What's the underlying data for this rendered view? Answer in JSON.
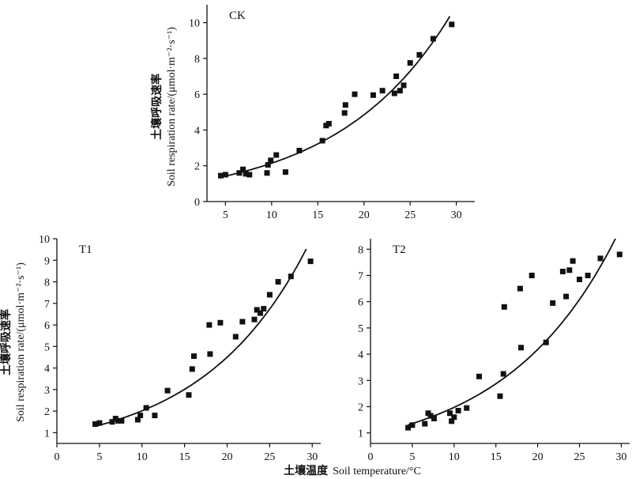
{
  "figure": {
    "xlabel_cn": "土壤温度",
    "xlabel_en": "Soil temperature/°C",
    "ylabel_cn": "土壤呼吸速率",
    "ylabel_en": "Soil respiration rate/(μmol·m⁻²·s⁻¹)"
  },
  "chart_data": [
    {
      "type": "scatter",
      "panel_label": "CK",
      "xlim": [
        3,
        32
      ],
      "ylim": [
        0,
        11
      ],
      "xticks": [
        5,
        10,
        15,
        20,
        25,
        30
      ],
      "yticks": [
        0,
        2,
        4,
        6,
        8,
        10
      ],
      "points": [
        {
          "x": 4.5,
          "y": 1.45
        },
        {
          "x": 5.0,
          "y": 1.5
        },
        {
          "x": 6.5,
          "y": 1.6
        },
        {
          "x": 6.9,
          "y": 1.8
        },
        {
          "x": 7.2,
          "y": 1.55
        },
        {
          "x": 7.6,
          "y": 1.5
        },
        {
          "x": 9.5,
          "y": 1.6
        },
        {
          "x": 9.6,
          "y": 2.05
        },
        {
          "x": 9.9,
          "y": 2.3
        },
        {
          "x": 10.5,
          "y": 2.6
        },
        {
          "x": 11.5,
          "y": 1.65
        },
        {
          "x": 13.0,
          "y": 2.85
        },
        {
          "x": 15.5,
          "y": 3.4
        },
        {
          "x": 15.9,
          "y": 4.25
        },
        {
          "x": 16.2,
          "y": 4.35
        },
        {
          "x": 17.9,
          "y": 4.95
        },
        {
          "x": 18.0,
          "y": 5.4
        },
        {
          "x": 19.0,
          "y": 6.0
        },
        {
          "x": 21.0,
          "y": 5.95
        },
        {
          "x": 22.0,
          "y": 6.2
        },
        {
          "x": 23.3,
          "y": 6.05
        },
        {
          "x": 23.5,
          "y": 7.0
        },
        {
          "x": 23.9,
          "y": 6.2
        },
        {
          "x": 24.3,
          "y": 6.5
        },
        {
          "x": 25.0,
          "y": 7.75
        },
        {
          "x": 26.0,
          "y": 8.2
        },
        {
          "x": 27.5,
          "y": 9.1
        },
        {
          "x": 29.5,
          "y": 9.9
        }
      ],
      "fit": {
        "a": 0.948,
        "b": 0.0816,
        "x_range": [
          4.5,
          29.3
        ]
      }
    },
    {
      "type": "scatter",
      "panel_label": "T1",
      "xlim": [
        0,
        31
      ],
      "ylim": [
        0.5,
        10
      ],
      "xticks": [
        0,
        5,
        10,
        15,
        20,
        25,
        30
      ],
      "yticks": [
        1,
        2,
        3,
        4,
        5,
        6,
        7,
        8,
        9,
        10
      ],
      "points": [
        {
          "x": 4.5,
          "y": 1.4
        },
        {
          "x": 5.0,
          "y": 1.45
        },
        {
          "x": 6.5,
          "y": 1.5
        },
        {
          "x": 6.9,
          "y": 1.65
        },
        {
          "x": 7.2,
          "y": 1.55
        },
        {
          "x": 7.6,
          "y": 1.55
        },
        {
          "x": 9.5,
          "y": 1.6
        },
        {
          "x": 9.8,
          "y": 1.8
        },
        {
          "x": 10.5,
          "y": 2.15
        },
        {
          "x": 11.5,
          "y": 1.8
        },
        {
          "x": 13.0,
          "y": 2.95
        },
        {
          "x": 15.5,
          "y": 2.75
        },
        {
          "x": 15.9,
          "y": 3.95
        },
        {
          "x": 16.1,
          "y": 4.55
        },
        {
          "x": 17.9,
          "y": 6.0
        },
        {
          "x": 18.0,
          "y": 4.65
        },
        {
          "x": 19.2,
          "y": 6.1
        },
        {
          "x": 21.0,
          "y": 5.45
        },
        {
          "x": 21.8,
          "y": 6.15
        },
        {
          "x": 23.2,
          "y": 6.25
        },
        {
          "x": 23.5,
          "y": 6.7
        },
        {
          "x": 23.9,
          "y": 6.55
        },
        {
          "x": 24.3,
          "y": 6.75
        },
        {
          "x": 25.0,
          "y": 7.4
        },
        {
          "x": 26.0,
          "y": 8.0
        },
        {
          "x": 27.5,
          "y": 8.25
        },
        {
          "x": 29.8,
          "y": 8.95
        }
      ],
      "fit": {
        "a": 0.9,
        "b": 0.0805,
        "x_range": [
          4.5,
          29.3
        ]
      }
    },
    {
      "type": "scatter",
      "panel_label": "T2",
      "xlim": [
        0,
        31
      ],
      "ylim": [
        0.6,
        8.4
      ],
      "xticks": [
        0,
        5,
        10,
        15,
        20,
        25,
        30
      ],
      "yticks": [
        1,
        2,
        3,
        4,
        5,
        6,
        7,
        8
      ],
      "points": [
        {
          "x": 4.5,
          "y": 1.2
        },
        {
          "x": 5.0,
          "y": 1.3
        },
        {
          "x": 6.5,
          "y": 1.35
        },
        {
          "x": 6.9,
          "y": 1.75
        },
        {
          "x": 7.2,
          "y": 1.65
        },
        {
          "x": 7.6,
          "y": 1.55
        },
        {
          "x": 9.5,
          "y": 1.75
        },
        {
          "x": 9.7,
          "y": 1.45
        },
        {
          "x": 10.0,
          "y": 1.6
        },
        {
          "x": 10.5,
          "y": 1.85
        },
        {
          "x": 11.5,
          "y": 1.95
        },
        {
          "x": 13.0,
          "y": 3.15
        },
        {
          "x": 15.5,
          "y": 2.4
        },
        {
          "x": 15.9,
          "y": 3.25
        },
        {
          "x": 16.0,
          "y": 5.8
        },
        {
          "x": 17.9,
          "y": 6.5
        },
        {
          "x": 18.0,
          "y": 4.25
        },
        {
          "x": 19.3,
          "y": 7.0
        },
        {
          "x": 21.0,
          "y": 4.45
        },
        {
          "x": 21.8,
          "y": 5.95
        },
        {
          "x": 23.0,
          "y": 7.15
        },
        {
          "x": 23.4,
          "y": 6.2
        },
        {
          "x": 23.8,
          "y": 7.2
        },
        {
          "x": 24.2,
          "y": 7.55
        },
        {
          "x": 25.0,
          "y": 6.85
        },
        {
          "x": 26.0,
          "y": 7.0
        },
        {
          "x": 27.5,
          "y": 7.65
        },
        {
          "x": 29.8,
          "y": 7.8
        }
      ],
      "fit": {
        "a": 0.933,
        "b": 0.075,
        "x_range": [
          4.5,
          29.3
        ]
      }
    }
  ]
}
